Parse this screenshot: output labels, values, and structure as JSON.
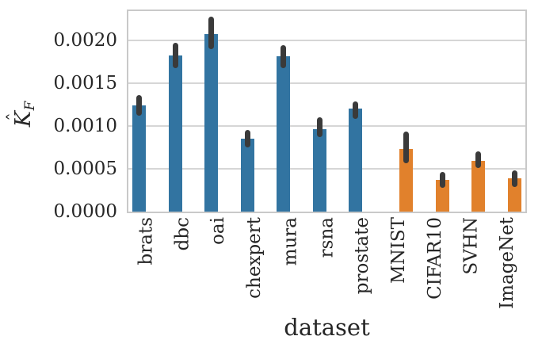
{
  "figure": {
    "background": "#ffffff",
    "text_color": "#262626",
    "axis_frame_color": "#c9c9c9",
    "grid_color": "#d6d6d6"
  },
  "chart_data": {
    "type": "bar",
    "title": "",
    "xlabel": "dataset",
    "ylabel": "K̂_F",
    "ylabel_parts": {
      "hat": "ˆ",
      "letter": "K",
      "subscript": "F"
    },
    "orientation": "vertical",
    "grid": "horizontal",
    "legend": "none",
    "ylim": [
      0,
      0.00234
    ],
    "yticks": [
      {
        "value": 0.0,
        "label": "0.0000"
      },
      {
        "value": 0.0005,
        "label": "0.0005"
      },
      {
        "value": 0.001,
        "label": "0.0010"
      },
      {
        "value": 0.0015,
        "label": "0.0015"
      },
      {
        "value": 0.002,
        "label": "0.0020"
      }
    ],
    "group_colors": {
      "medical": "#3274a1",
      "natural": "#e1812c"
    },
    "group_offsets": {
      "medical": -1,
      "natural": 1
    },
    "error_bar_color": "#3a3a3a",
    "points": [
      {
        "label": "brats",
        "group": "medical",
        "value": 0.00124,
        "err_low": 0.00115,
        "err_high": 0.00133
      },
      {
        "label": "dbc",
        "group": "medical",
        "value": 0.00182,
        "err_low": 0.00171,
        "err_high": 0.00194
      },
      {
        "label": "oai",
        "group": "medical",
        "value": 0.00207,
        "err_low": 0.00193,
        "err_high": 0.00224
      },
      {
        "label": "chexpert",
        "group": "medical",
        "value": 0.00085,
        "err_low": 0.00078,
        "err_high": 0.00092
      },
      {
        "label": "mura",
        "group": "medical",
        "value": 0.00181,
        "err_low": 0.00171,
        "err_high": 0.00191
      },
      {
        "label": "rsna",
        "group": "medical",
        "value": 0.00096,
        "err_low": 0.0009,
        "err_high": 0.00107
      },
      {
        "label": "prostate",
        "group": "medical",
        "value": 0.0012,
        "err_low": 0.00111,
        "err_high": 0.00125
      },
      {
        "label": "MNIST",
        "group": "natural",
        "value": 0.00073,
        "err_low": 0.0006,
        "err_high": 0.0009
      },
      {
        "label": "CIFAR10",
        "group": "natural",
        "value": 0.00037,
        "err_low": 0.00031,
        "err_high": 0.00043
      },
      {
        "label": "SVHN",
        "group": "natural",
        "value": 0.00059,
        "err_low": 0.00054,
        "err_high": 0.00067
      },
      {
        "label": "ImageNet",
        "group": "natural",
        "value": 0.00039,
        "err_low": 0.00032,
        "err_high": 0.00045
      }
    ]
  }
}
